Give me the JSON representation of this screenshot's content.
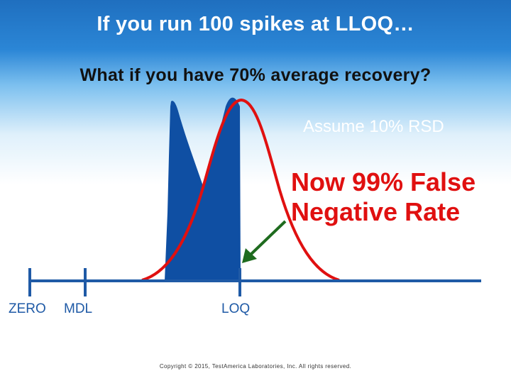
{
  "slide": {
    "title": "If you run 100 spikes at LLOQ…",
    "subtitle": "What if you have 70% average recovery?",
    "assumption": "Assume 10% RSD",
    "callout_line1": "Now 99% False",
    "callout_line2": "Negative Rate",
    "copyright": "Copyright © 2015, TestAmerica Laboratories, Inc. All rights reserved."
  },
  "axis": {
    "labels": [
      "ZERO",
      "MDL",
      "LOQ"
    ]
  },
  "colors": {
    "title": "#ffffff",
    "distribution_fill": "#0f4fa3",
    "recovery_curve": "#e01010",
    "arrow": "#1e6b1e",
    "axis": "#1f5aa6"
  }
}
